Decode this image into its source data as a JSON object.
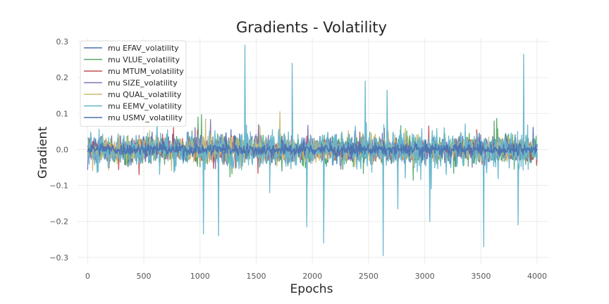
{
  "chart_data": {
    "type": "line",
    "title": "Gradients - Volatility",
    "xlabel": "Epochs",
    "ylabel": "Gradient",
    "xlim": [
      -90,
      4100
    ],
    "ylim": [
      -0.32,
      0.31
    ],
    "xticks": [
      0,
      500,
      1000,
      1500,
      2000,
      2500,
      3000,
      3500,
      4000
    ],
    "yticks": [
      -0.3,
      -0.2,
      -0.1,
      0.0,
      0.1,
      0.2,
      0.3
    ],
    "xtick_labels": [
      "0",
      "500",
      "1000",
      "1500",
      "2000",
      "2500",
      "3000",
      "3500",
      "4000"
    ],
    "ytick_labels": [
      "−0.3",
      "−0.2",
      "−0.1",
      "0.0",
      "0.1",
      "0.2",
      "0.3"
    ],
    "grid": true,
    "legend_position": "top-left",
    "x_range": [
      0,
      4000
    ],
    "series": [
      {
        "name": "mu EFAV_volatility",
        "color": "#4c72b0",
        "amplitude": 0.06
      },
      {
        "name": "mu VLUE_volatility",
        "color": "#55a868",
        "amplitude": 0.075
      },
      {
        "name": "mu MTUM_volatility",
        "color": "#c44e52",
        "amplitude": 0.05
      },
      {
        "name": "mu SIZE_volatility",
        "color": "#8172b2",
        "amplitude": 0.06
      },
      {
        "name": "mu QUAL_volatility",
        "color": "#ccb974",
        "amplitude": 0.06
      },
      {
        "name": "mu EEMV_volatility",
        "color": "#64b5cd",
        "amplitude": 0.09,
        "spikes": [
          {
            "x": 1400,
            "y": 0.29
          },
          {
            "x": 1820,
            "y": 0.24
          },
          {
            "x": 2470,
            "y": 0.19
          },
          {
            "x": 3880,
            "y": 0.265
          },
          {
            "x": 2665,
            "y": 0.165
          },
          {
            "x": 1030,
            "y": -0.235
          },
          {
            "x": 1165,
            "y": -0.24
          },
          {
            "x": 1950,
            "y": -0.215
          },
          {
            "x": 2100,
            "y": -0.26
          },
          {
            "x": 2630,
            "y": -0.295
          },
          {
            "x": 3525,
            "y": -0.27
          },
          {
            "x": 3830,
            "y": -0.21
          },
          {
            "x": 3045,
            "y": -0.2
          },
          {
            "x": 2760,
            "y": -0.165
          },
          {
            "x": 1620,
            "y": -0.12
          }
        ]
      },
      {
        "name": "mu USMV_volatility",
        "color": "#4c72b0",
        "amplitude": 0.03
      }
    ]
  }
}
